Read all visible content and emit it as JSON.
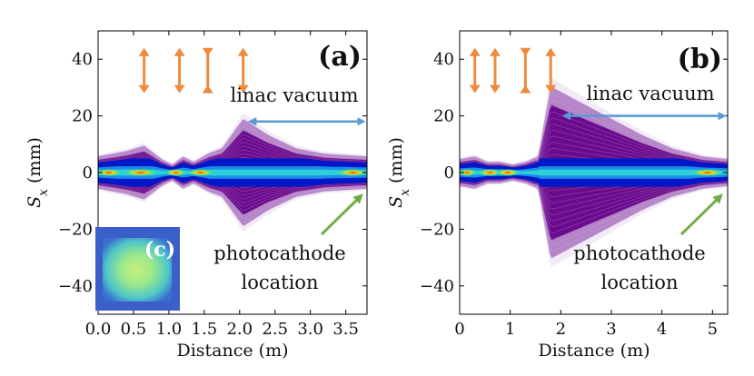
{
  "chart_data": [
    {
      "type": "heatmap",
      "panel_label": "(a)",
      "xlabel": "Distance (m)",
      "ylabel_main": "S",
      "ylabel_sub": "x",
      "ylabel_units": " (mm)",
      "xlim": [
        0,
        3.8
      ],
      "ylim": [
        -50,
        50
      ],
      "xticks": [
        "0.0",
        "0.5",
        "1.0",
        "1.5",
        "2.0",
        "2.5",
        "3.0",
        "3.5"
      ],
      "xtick_values": [
        0,
        0.5,
        1.0,
        1.5,
        2.0,
        2.5,
        3.0,
        3.5
      ],
      "yticks": [
        "40",
        "20",
        "0",
        "−20",
        "−40"
      ],
      "ytick_values": [
        40,
        20,
        0,
        -20,
        -40
      ],
      "lens_positions": [
        0.65,
        1.15,
        1.55,
        2.05
      ],
      "lens_styles": [
        "focus",
        "focus",
        "defocus",
        "focus"
      ],
      "envelope": [
        [
          0,
          6
        ],
        [
          0.4,
          8
        ],
        [
          0.65,
          10
        ],
        [
          0.9,
          5
        ],
        [
          1.05,
          3
        ],
        [
          1.2,
          6
        ],
        [
          1.35,
          4
        ],
        [
          1.55,
          7
        ],
        [
          1.75,
          9
        ],
        [
          2.05,
          20
        ],
        [
          2.4,
          14
        ],
        [
          2.8,
          9
        ],
        [
          3.2,
          7
        ],
        [
          3.8,
          6
        ]
      ],
      "hot_spots": [
        [
          0.15,
          1.0
        ],
        [
          0.6,
          1.3
        ],
        [
          1.1,
          0.8
        ],
        [
          1.45,
          1.0
        ],
        [
          3.6,
          1.2
        ]
      ],
      "beamline_annotation": "linac vacuum",
      "beamline_range": [
        2.1,
        3.8
      ],
      "beamline_y": 18,
      "end_annotation_line1": "photocathode",
      "end_annotation_line2": "location",
      "inset_label": "(c)"
    },
    {
      "type": "heatmap",
      "panel_label": "(b)",
      "xlabel": "Distance (m)",
      "ylabel_main": "S",
      "ylabel_sub": "x",
      "ylabel_units": " (mm)",
      "xlim": [
        0,
        5.3
      ],
      "ylim": [
        -50,
        50
      ],
      "xticks": [
        "0",
        "1",
        "2",
        "3",
        "4",
        "5"
      ],
      "xtick_values": [
        0,
        1,
        2,
        3,
        4,
        5
      ],
      "yticks": [
        "40",
        "20",
        "0",
        "−20",
        "−40"
      ],
      "ytick_values": [
        40,
        20,
        0,
        -20,
        -40
      ],
      "lens_positions": [
        0.3,
        0.7,
        1.3,
        1.8
      ],
      "lens_styles": [
        "focus",
        "focus",
        "defocus",
        "focus"
      ],
      "envelope": [
        [
          0,
          5
        ],
        [
          0.3,
          6
        ],
        [
          0.55,
          4
        ],
        [
          0.8,
          4
        ],
        [
          1.05,
          3
        ],
        [
          1.3,
          4
        ],
        [
          1.55,
          6
        ],
        [
          1.8,
          32
        ],
        [
          2.4,
          26
        ],
        [
          3.0,
          20
        ],
        [
          3.6,
          14
        ],
        [
          4.2,
          9
        ],
        [
          4.8,
          6
        ],
        [
          5.3,
          5
        ]
      ],
      "hot_spots": [
        [
          0.15,
          0.7
        ],
        [
          0.6,
          0.9
        ],
        [
          0.95,
          0.9
        ],
        [
          4.9,
          1.2
        ]
      ],
      "beamline_annotation": "linac vacuum",
      "beamline_range": [
        2.0,
        5.3
      ],
      "beamline_y": 20,
      "end_annotation_line1": "photocathode",
      "end_annotation_line2": "location"
    }
  ],
  "colors": {
    "purple": "#6a0a8c",
    "blue_core": "#0018c8",
    "cyan": "#2ecfd8",
    "hot": "#ff2000",
    "arrow_orange": "#f08a3c",
    "arrow_blue": "#5b9bd5",
    "arrow_green": "#70ad47"
  }
}
